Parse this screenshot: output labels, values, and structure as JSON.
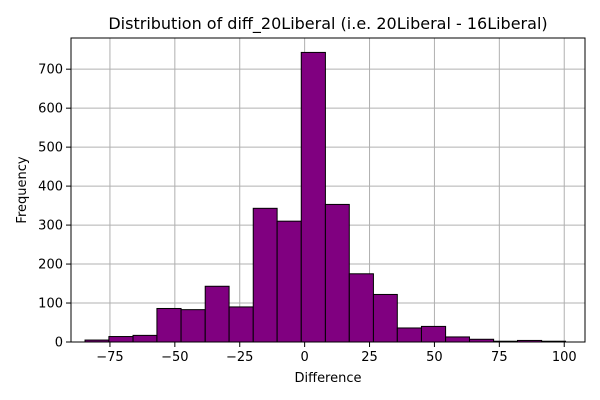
{
  "chart_data": {
    "type": "bar",
    "title": "Distribution of diff_20Liberal (i.e. 20Liberal - 16Liberal)",
    "xlabel": "Difference",
    "ylabel": "Frequency",
    "xlim": [
      -90,
      108
    ],
    "ylim": [
      0,
      780
    ],
    "x_ticks": [
      -75,
      -50,
      -25,
      0,
      25,
      50,
      75,
      100
    ],
    "y_ticks": [
      0,
      100,
      200,
      300,
      400,
      500,
      600,
      700
    ],
    "grid": true,
    "bar_color": "#800080",
    "edge_color": "#000000",
    "bins": [
      {
        "x0": -84.6,
        "x1": -75.4,
        "count": 5
      },
      {
        "x0": -75.4,
        "x1": -66.1,
        "count": 14
      },
      {
        "x0": -66.1,
        "x1": -56.9,
        "count": 17
      },
      {
        "x0": -56.9,
        "x1": -47.6,
        "count": 86
      },
      {
        "x0": -47.6,
        "x1": -38.3,
        "count": 83
      },
      {
        "x0": -38.3,
        "x1": -29.1,
        "count": 143
      },
      {
        "x0": -29.1,
        "x1": -19.8,
        "count": 90
      },
      {
        "x0": -19.8,
        "x1": -10.6,
        "count": 343
      },
      {
        "x0": -10.6,
        "x1": -1.3,
        "count": 310
      },
      {
        "x0": -1.3,
        "x1": 8.0,
        "count": 743
      },
      {
        "x0": 8.0,
        "x1": 17.2,
        "count": 353
      },
      {
        "x0": 17.2,
        "x1": 26.5,
        "count": 175
      },
      {
        "x0": 26.5,
        "x1": 35.7,
        "count": 122
      },
      {
        "x0": 35.7,
        "x1": 45.0,
        "count": 36
      },
      {
        "x0": 45.0,
        "x1": 54.3,
        "count": 40
      },
      {
        "x0": 54.3,
        "x1": 63.5,
        "count": 13
      },
      {
        "x0": 63.5,
        "x1": 72.8,
        "count": 7
      },
      {
        "x0": 72.8,
        "x1": 82.0,
        "count": 2
      },
      {
        "x0": 82.0,
        "x1": 91.3,
        "count": 4
      },
      {
        "x0": 91.3,
        "x1": 100.5,
        "count": 2
      }
    ]
  }
}
